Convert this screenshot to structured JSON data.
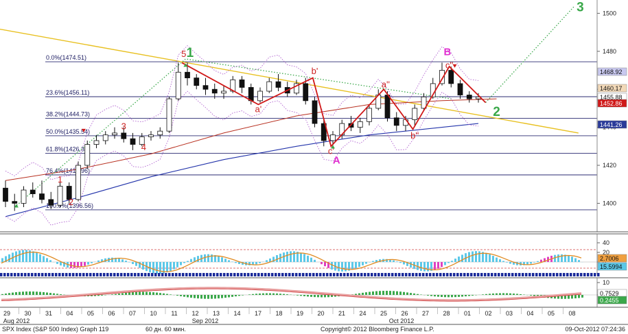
{
  "chart_data": [
    {
      "type": "candlestick",
      "panel": "price",
      "title": "",
      "ylim": [
        1385,
        1507
      ],
      "y_ticks": [
        1400,
        1420,
        1440,
        1460,
        1480,
        1500
      ],
      "x_ticks": [
        "29",
        "30",
        "31",
        "04",
        "05",
        "06",
        "07",
        "10",
        "11",
        "12",
        "13",
        "14",
        "17",
        "18",
        "19",
        "20",
        "21",
        "24",
        "25",
        "26",
        "27",
        "28",
        "01",
        "02",
        "03",
        "04",
        "05",
        "08"
      ],
      "month_labels": [
        {
          "label": "Aug 2012",
          "day_index": 1
        },
        {
          "label": "Sep 2012",
          "day_index": 14
        },
        {
          "label": "Oct 2012",
          "day_index": 25
        }
      ],
      "fib_levels": [
        {
          "label": "0.0%(1474.51)",
          "value": 1474.51
        },
        {
          "label": "23.6%(1456.11)",
          "value": 1456.11
        },
        {
          "label": "38.2%(1444.73)",
          "value": 1444.73
        },
        {
          "label": "50.0%(1435.54)",
          "value": 1435.54
        },
        {
          "label": "61.8%(1426.35)",
          "value": 1426.35
        },
        {
          "label": "76.4%(1414.96)",
          "value": 1414.96
        },
        {
          "label": "100.0%(1396.56)",
          "value": 1396.56
        }
      ],
      "price_tags": [
        {
          "label": "1468.92",
          "value": 1468.92,
          "color": "#c9c9f0",
          "text_color": "#111111"
        },
        {
          "label": "1460.17",
          "value": 1460.17,
          "color": "#f2d9b8",
          "text_color": "#111111"
        },
        {
          "label": "1455.88",
          "value": 1455.88,
          "color": "#ffffff",
          "text_color": "#111111"
        },
        {
          "label": "1452.86",
          "value": 1452.86,
          "color": "#d01818",
          "text_color": "#ffffff"
        },
        {
          "label": "1441.26",
          "value": 1441.26,
          "color": "#2a3b9a",
          "text_color": "#ffffff"
        }
      ],
      "wave_labels": [
        {
          "text": "1",
          "style": "red",
          "day": 3.0,
          "price": 1411
        },
        {
          "text": "2",
          "style": "red",
          "day": 3.6,
          "price": 1399
        },
        {
          "text": "3",
          "style": "red",
          "day": 6.5,
          "price": 1439
        },
        {
          "text": "4",
          "style": "red",
          "day": 7.6,
          "price": 1428
        },
        {
          "text": "5",
          "style": "red",
          "day": 9.8,
          "price": 1477
        },
        {
          "text": "1",
          "style": "green",
          "day": 10.15,
          "price": 1477
        },
        {
          "text": "a'",
          "style": "red",
          "day": 13.9,
          "price": 1448
        },
        {
          "text": "b'",
          "style": "red",
          "day": 17.0,
          "price": 1468
        },
        {
          "text": "c'",
          "style": "red",
          "day": 17.9,
          "price": 1426
        },
        {
          "text": "A",
          "style": "mag",
          "day": 18.2,
          "price": 1421
        },
        {
          "text": "a''",
          "style": "red",
          "day": 20.9,
          "price": 1461
        },
        {
          "text": "b''",
          "style": "red",
          "day": 22.5,
          "price": 1434
        },
        {
          "text": "B",
          "style": "mag",
          "day": 24.3,
          "price": 1478
        },
        {
          "text": "c''",
          "style": "red",
          "day": 24.4,
          "price": 1471
        },
        {
          "text": "2",
          "style": "green",
          "day": 27.0,
          "price": 1446
        },
        {
          "text": "3",
          "style": "green",
          "day": 31.6,
          "price": 1501
        }
      ],
      "ohlc": [
        {
          "d": 0,
          "o": 1408,
          "h": 1412,
          "l": 1398,
          "c": 1401
        },
        {
          "d": 0.5,
          "o": 1401,
          "h": 1405,
          "l": 1396,
          "c": 1400
        },
        {
          "d": 1,
          "o": 1400,
          "h": 1409,
          "l": 1398,
          "c": 1407
        },
        {
          "d": 1.5,
          "o": 1407,
          "h": 1411,
          "l": 1403,
          "c": 1405
        },
        {
          "d": 2,
          "o": 1405,
          "h": 1412,
          "l": 1400,
          "c": 1402
        },
        {
          "d": 2.5,
          "o": 1402,
          "h": 1406,
          "l": 1397,
          "c": 1399
        },
        {
          "d": 3,
          "o": 1399,
          "h": 1411,
          "l": 1398,
          "c": 1409
        },
        {
          "d": 3.5,
          "o": 1409,
          "h": 1411,
          "l": 1400,
          "c": 1402
        },
        {
          "d": 4,
          "o": 1402,
          "h": 1422,
          "l": 1401,
          "c": 1420
        },
        {
          "d": 4.5,
          "o": 1420,
          "h": 1433,
          "l": 1418,
          "c": 1431
        },
        {
          "d": 5,
          "o": 1431,
          "h": 1436,
          "l": 1429,
          "c": 1433
        },
        {
          "d": 5.5,
          "o": 1433,
          "h": 1438,
          "l": 1431,
          "c": 1436
        },
        {
          "d": 6,
          "o": 1436,
          "h": 1440,
          "l": 1434,
          "c": 1437
        },
        {
          "d": 6.5,
          "o": 1437,
          "h": 1440,
          "l": 1432,
          "c": 1434
        },
        {
          "d": 7,
          "o": 1434,
          "h": 1437,
          "l": 1428,
          "c": 1431
        },
        {
          "d": 7.5,
          "o": 1431,
          "h": 1437,
          "l": 1430,
          "c": 1435
        },
        {
          "d": 8,
          "o": 1435,
          "h": 1438,
          "l": 1433,
          "c": 1436
        },
        {
          "d": 8.5,
          "o": 1436,
          "h": 1440,
          "l": 1434,
          "c": 1438
        },
        {
          "d": 9,
          "o": 1438,
          "h": 1456,
          "l": 1437,
          "c": 1455
        },
        {
          "d": 9.5,
          "o": 1455,
          "h": 1474,
          "l": 1454,
          "c": 1469
        },
        {
          "d": 10,
          "o": 1469,
          "h": 1474,
          "l": 1462,
          "c": 1466
        },
        {
          "d": 10.5,
          "o": 1466,
          "h": 1468,
          "l": 1460,
          "c": 1462
        },
        {
          "d": 11,
          "o": 1462,
          "h": 1466,
          "l": 1457,
          "c": 1460
        },
        {
          "d": 11.5,
          "o": 1460,
          "h": 1463,
          "l": 1455,
          "c": 1458
        },
        {
          "d": 12,
          "o": 1458,
          "h": 1462,
          "l": 1455,
          "c": 1459
        },
        {
          "d": 12.5,
          "o": 1459,
          "h": 1467,
          "l": 1458,
          "c": 1465
        },
        {
          "d": 13,
          "o": 1465,
          "h": 1467,
          "l": 1458,
          "c": 1461
        },
        {
          "d": 13.5,
          "o": 1461,
          "h": 1463,
          "l": 1452,
          "c": 1454
        },
        {
          "d": 14,
          "o": 1454,
          "h": 1461,
          "l": 1453,
          "c": 1459
        },
        {
          "d": 14.5,
          "o": 1459,
          "h": 1466,
          "l": 1458,
          "c": 1464
        },
        {
          "d": 15,
          "o": 1464,
          "h": 1468,
          "l": 1459,
          "c": 1461
        },
        {
          "d": 15.5,
          "o": 1461,
          "h": 1464,
          "l": 1456,
          "c": 1458
        },
        {
          "d": 16,
          "o": 1458,
          "h": 1465,
          "l": 1457,
          "c": 1463
        },
        {
          "d": 16.5,
          "o": 1463,
          "h": 1466,
          "l": 1452,
          "c": 1454
        },
        {
          "d": 17,
          "o": 1454,
          "h": 1456,
          "l": 1440,
          "c": 1442
        },
        {
          "d": 17.5,
          "o": 1442,
          "h": 1444,
          "l": 1430,
          "c": 1433
        },
        {
          "d": 18,
          "o": 1433,
          "h": 1438,
          "l": 1430,
          "c": 1436
        },
        {
          "d": 18.5,
          "o": 1436,
          "h": 1444,
          "l": 1434,
          "c": 1442
        },
        {
          "d": 19,
          "o": 1442,
          "h": 1446,
          "l": 1438,
          "c": 1440
        },
        {
          "d": 19.5,
          "o": 1440,
          "h": 1445,
          "l": 1437,
          "c": 1443
        },
        {
          "d": 20,
          "o": 1443,
          "h": 1452,
          "l": 1441,
          "c": 1450
        },
        {
          "d": 20.5,
          "o": 1450,
          "h": 1460,
          "l": 1449,
          "c": 1457
        },
        {
          "d": 21,
          "o": 1457,
          "h": 1459,
          "l": 1443,
          "c": 1445
        },
        {
          "d": 21.5,
          "o": 1445,
          "h": 1448,
          "l": 1438,
          "c": 1441
        },
        {
          "d": 22,
          "o": 1441,
          "h": 1446,
          "l": 1438,
          "c": 1444
        },
        {
          "d": 22.5,
          "o": 1444,
          "h": 1452,
          "l": 1441,
          "c": 1450
        },
        {
          "d": 23,
          "o": 1450,
          "h": 1458,
          "l": 1449,
          "c": 1456
        },
        {
          "d": 23.5,
          "o": 1456,
          "h": 1466,
          "l": 1455,
          "c": 1463
        },
        {
          "d": 24,
          "o": 1463,
          "h": 1474,
          "l": 1462,
          "c": 1470
        },
        {
          "d": 24.5,
          "o": 1470,
          "h": 1472,
          "l": 1461,
          "c": 1463
        },
        {
          "d": 25,
          "o": 1463,
          "h": 1465,
          "l": 1455,
          "c": 1457
        },
        {
          "d": 25.5,
          "o": 1457,
          "h": 1459,
          "l": 1453,
          "c": 1455
        },
        {
          "d": 26,
          "o": 1455,
          "h": 1458,
          "l": 1453,
          "c": 1456
        }
      ],
      "lines": {
        "ma_red": [
          [
            0,
            1412
          ],
          [
            4,
            1418
          ],
          [
            8,
            1426
          ],
          [
            12,
            1437
          ],
          [
            16,
            1446
          ],
          [
            20,
            1452
          ],
          [
            24,
            1454
          ],
          [
            27,
            1455
          ]
        ],
        "ma_blue": [
          [
            0,
            1393
          ],
          [
            4,
            1403
          ],
          [
            8,
            1414
          ],
          [
            12,
            1423
          ],
          [
            16,
            1430
          ],
          [
            20,
            1436
          ],
          [
            24,
            1440
          ],
          [
            26,
            1442
          ]
        ],
        "trend_yellow": [
          [
            -0.5,
            1492
          ],
          [
            31.5,
            1437
          ]
        ],
        "zigzag_red": [
          [
            9.7,
            1474
          ],
          [
            13.9,
            1452
          ],
          [
            16.9,
            1466
          ],
          [
            17.9,
            1430
          ],
          [
            20.8,
            1460
          ],
          [
            22.4,
            1439
          ],
          [
            24.4,
            1472
          ],
          [
            26.4,
            1453
          ]
        ],
        "green_dotted_a": [
          [
            0.5,
            1398
          ],
          [
            9.9,
            1476
          ],
          [
            24.5,
            1455
          ]
        ],
        "green_dotted_b": [
          [
            26.4,
            1453
          ],
          [
            31.3,
            1504
          ]
        ]
      }
    },
    {
      "type": "histogram",
      "panel": "oscillator_1",
      "title": "",
      "y_ticks": [
        0,
        20,
        40
      ],
      "price_tags": [
        {
          "label": "2.7006",
          "color": "#f0a040",
          "text_color": "#111111"
        },
        {
          "label": "15.5994",
          "color": "#5cc8e8",
          "text_color": "#111111"
        }
      ]
    },
    {
      "type": "histogram",
      "panel": "oscillator_2",
      "title": "",
      "y_ticks": [
        0,
        10
      ],
      "price_tags": [
        {
          "label": "0.7529",
          "color": "#ffffff",
          "text_color": "#111111"
        },
        {
          "label": "0.2455",
          "color": "#3aa84a",
          "text_color": "#ffffff"
        }
      ]
    }
  ],
  "footer": {
    "left": "SPX Index (S&P 500 Index) Graph 119",
    "center_left": "60 дн. 60 мин.",
    "copyright": "Copyright© 2012 Bloomberg Finance L.P.",
    "timestamp": "09-Oct-2012 07:24:36"
  },
  "colors": {
    "candle_up": "#111111",
    "candle_down": "#111111",
    "ma_red": "#b83020",
    "ma_blue": "#2233aa",
    "trend_yellow": "#e8c020",
    "zigzag": "#d01818",
    "fib_line": "#2a2a70",
    "bollinger": "#b060d0",
    "hist_pos": "#5cc8e8",
    "hist_neg": "#5cc8e8",
    "signal_orange": "#e08a20"
  }
}
